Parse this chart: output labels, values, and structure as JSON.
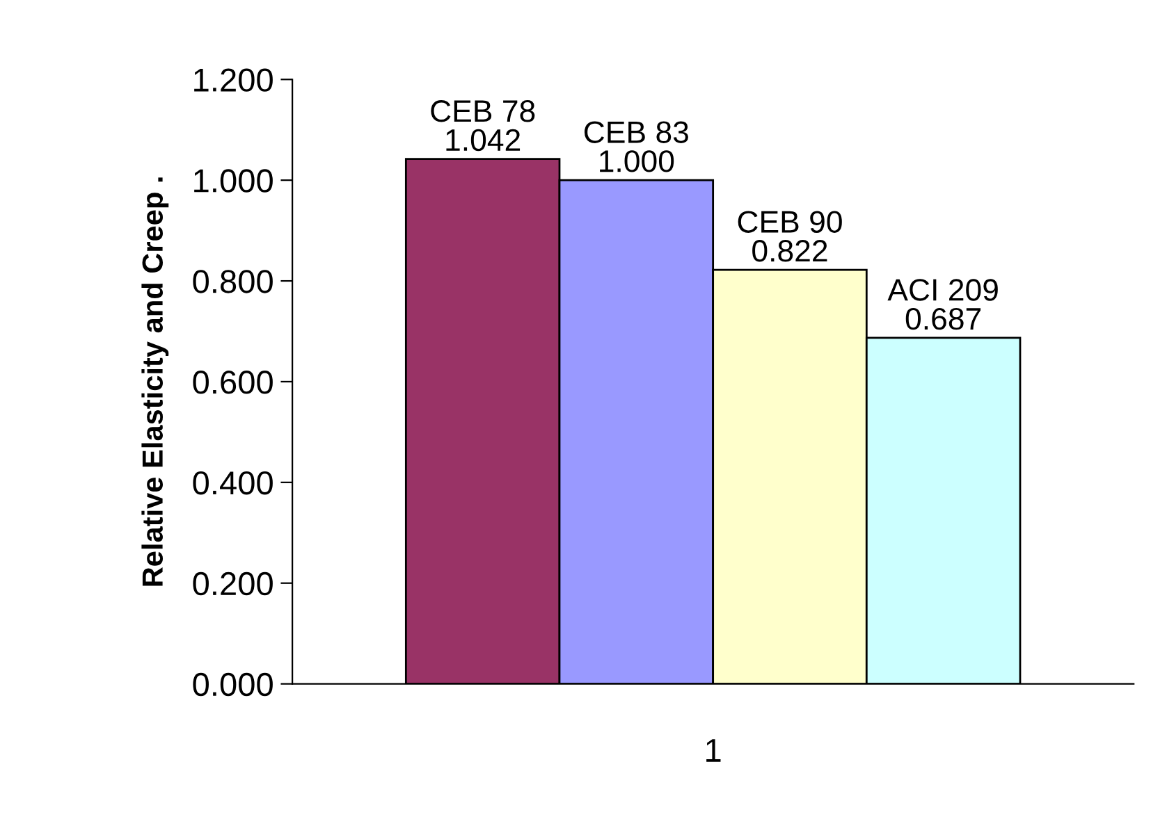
{
  "chart_data": {
    "type": "bar",
    "ylabel": "Relative Elasticity and Creep .",
    "categories": [
      "1"
    ],
    "series": [
      {
        "name": "CEB 78",
        "color": "#993366",
        "values": [
          1.042
        ],
        "value_labels": [
          "1.042"
        ]
      },
      {
        "name": "CEB 83",
        "color": "#9999ff",
        "values": [
          1.0
        ],
        "value_labels": [
          "1.000"
        ]
      },
      {
        "name": "CEB 90",
        "color": "#ffffcc",
        "values": [
          0.822
        ],
        "value_labels": [
          "0.822"
        ]
      },
      {
        "name": "ACI 209",
        "color": "#ccffff",
        "values": [
          0.687
        ],
        "value_labels": [
          "0.687"
        ]
      }
    ],
    "ylim": [
      0,
      1.2
    ],
    "yticks": [
      {
        "value": 0,
        "label": "0.000"
      },
      {
        "value": 0.2,
        "label": "0.200"
      },
      {
        "value": 0.4,
        "label": "0.400"
      },
      {
        "value": 0.6,
        "label": "0.600"
      },
      {
        "value": 0.8,
        "label": "0.800"
      },
      {
        "value": 1.0,
        "label": "1.000"
      },
      {
        "value": 1.2,
        "label": "1.200"
      }
    ],
    "grid": false,
    "legend": false
  }
}
